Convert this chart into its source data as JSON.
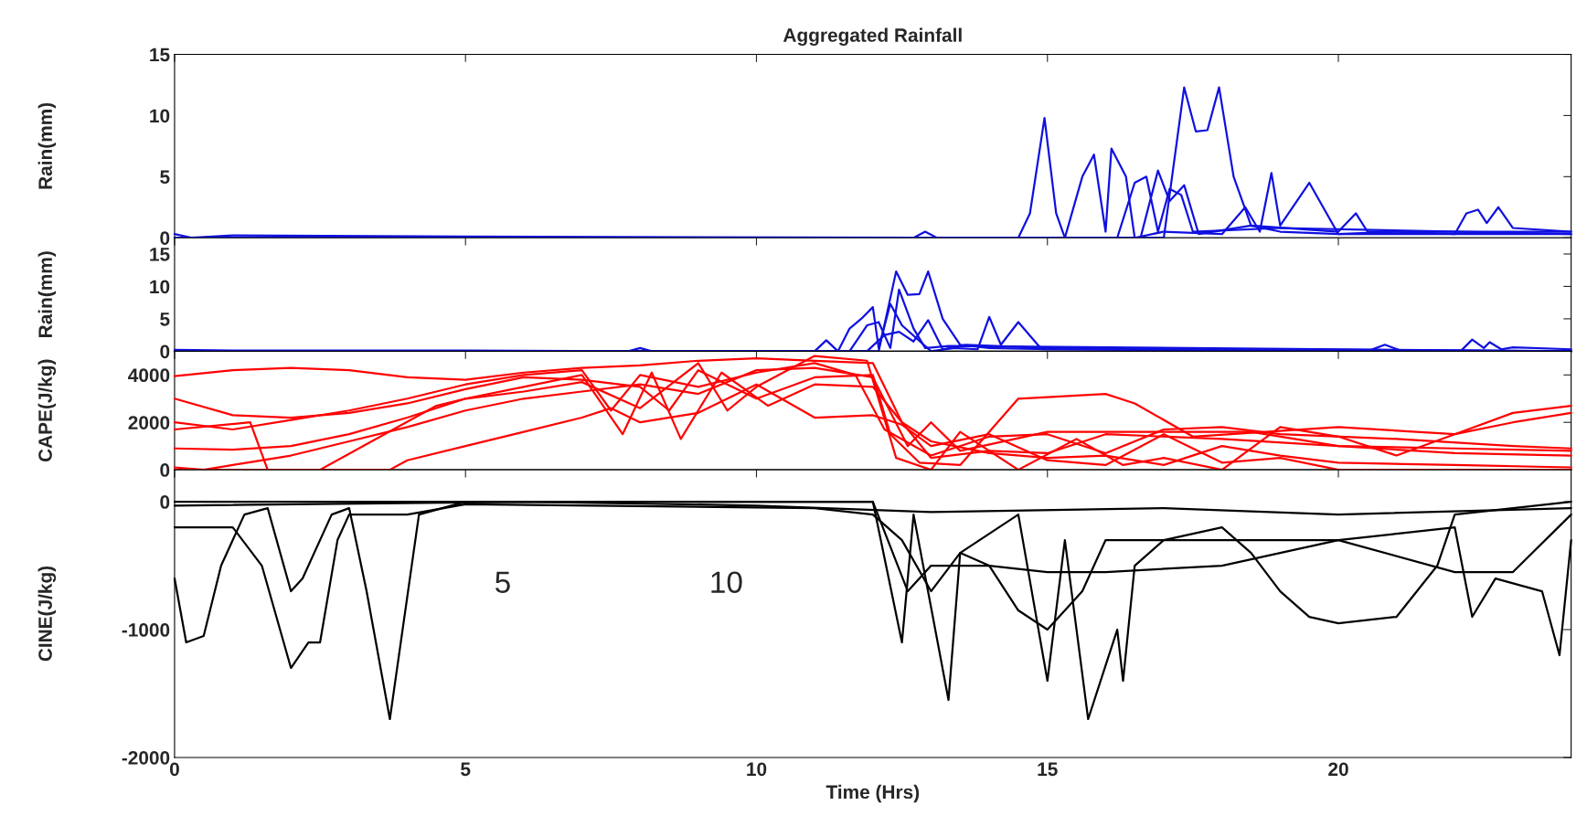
{
  "chart_data": [
    {
      "type": "line",
      "title": "Aggregated Rainfall",
      "ylabel": "Rain(mm)",
      "xlim": [
        0,
        24
      ],
      "xticks": [
        0,
        5,
        10,
        15,
        20
      ],
      "ylim": [
        0,
        15
      ],
      "yticks": [
        0,
        5,
        10,
        15
      ],
      "tick_labels": "y",
      "grid": false,
      "marker": "none",
      "line_style": "solid",
      "series": [
        {
          "color": "#1010e0",
          "x": [
            0,
            0.3,
            1,
            5,
            12.7,
            12.9,
            13.1,
            14.5,
            14.7,
            14.95,
            15.15,
            15.3,
            17.0,
            17.35,
            17.55,
            17.75,
            17.95,
            18.2,
            18.5,
            19,
            20,
            21,
            22,
            22.2,
            22.4,
            22.55,
            22.75,
            23,
            24
          ],
          "values": [
            0.3,
            0,
            0.2,
            0.1,
            0,
            0.5,
            0,
            0,
            2,
            9.8,
            2,
            0,
            0,
            12.3,
            8.7,
            8.8,
            12.3,
            5,
            1,
            0.5,
            0.3,
            0.5,
            0.3,
            2,
            2.3,
            1.2,
            2.5,
            0.8,
            0.5
          ]
        },
        {
          "color": "#1010e0",
          "x": [
            0,
            15.3,
            15.6,
            15.8,
            16.0,
            16.1,
            16.35,
            16.5,
            17,
            18,
            18.4,
            18.65,
            18.85,
            19.0,
            19.5,
            20,
            24
          ],
          "values": [
            0,
            0,
            5,
            6.8,
            0.5,
            7.3,
            5,
            0,
            0.5,
            0.3,
            2.5,
            0.5,
            5.3,
            1,
            4.5,
            0.3,
            0.3
          ]
        },
        {
          "color": "#1010e0",
          "x": [
            0,
            16.2,
            16.5,
            16.7,
            16.9,
            17.1,
            17.3,
            17.5,
            19,
            24
          ],
          "values": [
            0,
            0,
            4.5,
            5.0,
            0.5,
            4,
            3.5,
            0.5,
            0.8,
            0.3
          ]
        },
        {
          "color": "#1010e0",
          "x": [
            0,
            16.6,
            16.9,
            17.1,
            17.35,
            17.6,
            18.5,
            20,
            20.3,
            20.5,
            24
          ],
          "values": [
            0,
            0,
            5.5,
            3,
            4.3,
            0.3,
            1,
            0.5,
            2,
            0.5,
            0.5
          ]
        }
      ]
    },
    {
      "type": "line",
      "ylabel": "Rain(mm)",
      "xlim": [
        0,
        24
      ],
      "xticks": [
        0,
        5,
        10,
        15,
        20
      ],
      "ylim": [
        0,
        17.5
      ],
      "yticks": [
        0,
        5,
        10,
        15
      ],
      "tick_labels": "y",
      "grid": false,
      "marker": "none",
      "line_style": "solid",
      "series": [
        {
          "color": "#1010e0",
          "x": [
            0,
            1,
            5,
            7.8,
            8.0,
            8.2,
            11,
            11.2,
            11.4,
            12.1,
            12.4,
            12.6,
            12.8,
            12.95,
            13.2,
            13.5,
            14,
            15,
            20.5,
            20.8,
            21.1,
            22.1,
            22.3,
            22.5,
            22.6,
            22.8,
            23,
            24
          ],
          "values": [
            0.2,
            0.1,
            0.1,
            0,
            0.5,
            0,
            0,
            1.7,
            0,
            0,
            12.3,
            8.7,
            8.8,
            12.3,
            5,
            1,
            0.5,
            0.3,
            0,
            1.0,
            0,
            0,
            1.8,
            0.5,
            1.4,
            0.3,
            0.6,
            0.3
          ]
        },
        {
          "color": "#1010e0",
          "x": [
            0,
            11.4,
            11.6,
            11.8,
            12.0,
            12.1,
            12.3,
            12.5,
            13,
            13.4,
            13.8,
            14.0,
            14.2,
            14.5,
            14.9,
            15.5,
            24
          ],
          "values": [
            0,
            0,
            3.5,
            5,
            6.8,
            0.5,
            7.3,
            4,
            0,
            0.5,
            0.3,
            5.3,
            1,
            4.5,
            0.3,
            0.3,
            0
          ]
        },
        {
          "color": "#1010e0",
          "x": [
            0,
            11.6,
            11.9,
            12.1,
            12.3,
            12.45,
            12.7,
            12.9,
            13.3,
            24
          ],
          "values": [
            0,
            0,
            4,
            4.5,
            0.5,
            9.5,
            3.5,
            0.5,
            0.8,
            0
          ]
        },
        {
          "color": "#1010e0",
          "x": [
            0,
            11.9,
            12.2,
            12.45,
            12.7,
            12.95,
            13.2,
            13.6,
            15,
            24
          ],
          "values": [
            0,
            0,
            2.5,
            3,
            1.5,
            4.8,
            0.3,
            1,
            0.5,
            0
          ]
        }
      ]
    },
    {
      "type": "line",
      "ylabel": "CAPE(J/kg)",
      "xlim": [
        0,
        24
      ],
      "xticks": [
        0,
        5,
        10,
        15,
        20
      ],
      "ylim": [
        0,
        5000
      ],
      "yticks": [
        0,
        2000,
        4000
      ],
      "tick_labels": "y",
      "grid": false,
      "marker": "none",
      "line_style": "solid",
      "series": [
        {
          "color": "#ff0000",
          "x": [
            0,
            1,
            2,
            3,
            4,
            5,
            6,
            7,
            8,
            9,
            10,
            11,
            12,
            12.5,
            13,
            14,
            15,
            16,
            18,
            20,
            22,
            24
          ],
          "values": [
            3950,
            4200,
            4300,
            4200,
            3900,
            3800,
            4100,
            4300,
            4400,
            4600,
            4700,
            4600,
            4500,
            2000,
            500,
            800,
            700,
            1500,
            1300,
            1000,
            900,
            800
          ]
        },
        {
          "color": "#ff0000",
          "x": [
            0,
            1,
            2,
            3,
            4,
            5,
            6,
            7,
            8,
            8.5,
            9,
            10,
            11,
            12,
            12.3,
            12.8,
            13.5,
            14.5,
            16,
            16.5,
            17.5,
            20,
            22,
            23,
            24
          ],
          "values": [
            3000,
            2300,
            2200,
            2400,
            2800,
            3400,
            3900,
            3800,
            3500,
            2500,
            4200,
            3000,
            3900,
            4000,
            1500,
            300,
            200,
            3000,
            3200,
            2800,
            1400,
            1800,
            1500,
            2400,
            2700
          ]
        },
        {
          "color": "#ff0000",
          "x": [
            0,
            1,
            2,
            3,
            4,
            5,
            6,
            7,
            7.5,
            8,
            9,
            10,
            11,
            11.7,
            12.2,
            13,
            14,
            15,
            16,
            17,
            18,
            19,
            21,
            23,
            24
          ],
          "values": [
            2000,
            1700,
            2100,
            2500,
            3000,
            3600,
            4000,
            4200,
            2500,
            4000,
            3500,
            4100,
            4500,
            4000,
            1700,
            600,
            1400,
            1500,
            700,
            1700,
            1800,
            1500,
            1300,
            1000,
            900
          ]
        },
        {
          "color": "#ff0000",
          "x": [
            0,
            1,
            2,
            3,
            4,
            5,
            6,
            7,
            7.7,
            8.2,
            8.7,
            9.4,
            10.2,
            11,
            12,
            12.5,
            13,
            14,
            15,
            16,
            17,
            18,
            19,
            20,
            22,
            24
          ],
          "values": [
            900,
            850,
            1000,
            1500,
            2200,
            3000,
            3500,
            4000,
            1500,
            4100,
            1300,
            4100,
            2700,
            3600,
            3500,
            2000,
            1200,
            700,
            500,
            600,
            200,
            1000,
            600,
            300,
            200,
            100
          ]
        },
        {
          "color": "#ff0000",
          "x": [
            0,
            0.5,
            1,
            2,
            3,
            4,
            5,
            6,
            7,
            8,
            9,
            10,
            11,
            12,
            12.6,
            13,
            13.5,
            15,
            17,
            18.5,
            20,
            22,
            24
          ],
          "values": [
            100,
            0,
            200,
            600,
            1200,
            1800,
            2500,
            3000,
            3300,
            3600,
            3200,
            4200,
            4300,
            3900,
            1000,
            2000,
            800,
            1600,
            1600,
            1600,
            1000,
            700,
            600
          ]
        },
        {
          "color": "#ff0000",
          "x": [
            0,
            3.7,
            4,
            5,
            6,
            7,
            7.5,
            8,
            9,
            10,
            11,
            12,
            12.5,
            13,
            14,
            15,
            16,
            17,
            18,
            19,
            20,
            24
          ],
          "values": [
            0,
            0,
            400,
            1000,
            1600,
            2200,
            2600,
            2000,
            2400,
            3600,
            2200,
            2300,
            1900,
            1000,
            1500,
            400,
            200,
            1500,
            300,
            500,
            0,
            0
          ]
        },
        {
          "color": "#ff0000",
          "x": [
            0,
            1.3,
            1.6,
            2.5,
            4.5,
            5,
            6,
            7,
            8,
            9,
            9.5,
            10,
            11,
            11.9,
            12.4,
            13,
            13.5,
            14.5,
            15.5,
            16.3,
            17,
            18,
            19,
            20,
            21,
            22,
            23,
            24
          ],
          "values": [
            1700,
            2000,
            0,
            0,
            2700,
            3000,
            3300,
            3700,
            2600,
            4500,
            2500,
            3500,
            4800,
            4600,
            500,
            0,
            1600,
            0,
            1300,
            200,
            500,
            0,
            1800,
            1400,
            600,
            1500,
            2000,
            2400
          ]
        }
      ]
    },
    {
      "type": "line",
      "ylabel": "CINE(J/kg)",
      "xlabel": "Time (Hrs)",
      "xlim": [
        0,
        24
      ],
      "xticks": [
        0,
        5,
        10,
        15,
        20
      ],
      "ylim": [
        -2000,
        250
      ],
      "yticks": [
        -2000,
        -1000,
        0
      ],
      "grid": false,
      "marker": "none",
      "line_style": "solid",
      "annotations": [
        "5",
        "10"
      ],
      "series": [
        {
          "color": "#000000",
          "x": [
            0,
            0.2,
            0.5,
            0.8,
            1.2,
            1.6,
            2,
            2.2,
            2.7,
            3,
            3.3,
            3.7,
            4.2,
            5,
            12,
            12.5,
            12.7,
            13.3,
            13.5,
            14.5,
            15,
            15.3,
            15.7,
            16.2,
            16.3,
            16.5,
            17,
            18,
            18.5,
            19,
            19.5,
            20,
            21,
            21.7,
            22,
            24
          ],
          "values": [
            -600,
            -1100,
            -1050,
            -500,
            -100,
            -50,
            -700,
            -600,
            -100,
            -50,
            -700,
            -1700,
            -100,
            0,
            0,
            -1100,
            -100,
            -1550,
            -400,
            -100,
            -1400,
            -300,
            -1700,
            -1000,
            -1400,
            -500,
            -300,
            -200,
            -400,
            -700,
            -900,
            -950,
            -900,
            -500,
            -100,
            0
          ]
        },
        {
          "color": "#000000",
          "x": [
            0,
            1,
            1.5,
            2,
            2.3,
            2.5,
            2.8,
            3,
            4,
            5,
            11,
            12,
            12.5,
            13,
            13.5,
            14,
            14.5,
            15,
            15.6,
            16,
            18,
            20,
            21,
            22,
            22.3,
            22.7,
            23.5,
            23.8,
            24
          ],
          "values": [
            -200,
            -200,
            -500,
            -1300,
            -1100,
            -1100,
            -300,
            -100,
            -100,
            -20,
            -50,
            -100,
            -300,
            -700,
            -400,
            -500,
            -850,
            -1000,
            -700,
            -300,
            -300,
            -300,
            -250,
            -200,
            -900,
            -600,
            -700,
            -1200,
            -300
          ]
        },
        {
          "color": "#000000",
          "x": [
            0,
            12,
            12.6,
            13,
            14,
            15,
            16,
            18,
            20,
            22,
            23,
            24
          ],
          "values": [
            0,
            0,
            -700,
            -500,
            -500,
            -550,
            -550,
            -500,
            -300,
            -550,
            -550,
            -100
          ]
        },
        {
          "color": "#000000",
          "x": [
            0,
            6,
            10,
            13,
            17,
            20,
            24
          ],
          "values": [
            -30,
            0,
            -30,
            -80,
            -50,
            -100,
            -50
          ]
        }
      ]
    }
  ]
}
